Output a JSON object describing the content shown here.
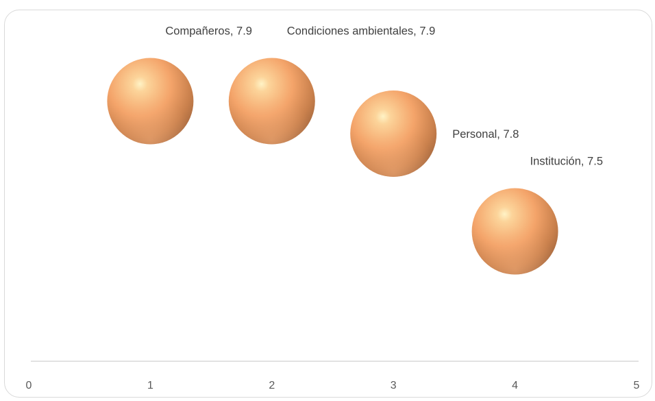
{
  "chart_data": {
    "type": "bubble",
    "title": "",
    "xlabel": "",
    "ylabel": "",
    "xlim": [
      0,
      5
    ],
    "x_ticks": [
      "0",
      "1",
      "2",
      "3",
      "4",
      "5"
    ],
    "y_axis_visible": false,
    "gridlines": false,
    "legend": "none",
    "bubble_color": "#f4a46a",
    "points": [
      {
        "category": "Compañeros",
        "x": 1,
        "y": 7.9,
        "label": "Compañeros, 7.9",
        "label_position": "top-right"
      },
      {
        "category": "Condiciones ambientales",
        "x": 2,
        "y": 7.9,
        "label": "Condiciones ambientales, 7.9",
        "label_position": "top-right"
      },
      {
        "category": "Personal",
        "x": 3,
        "y": 7.8,
        "label": "Personal, 7.8",
        "label_position": "right"
      },
      {
        "category": "Institución",
        "x": 4,
        "y": 7.5,
        "label": "Institución, 7.5",
        "label_position": "top-right"
      }
    ]
  }
}
